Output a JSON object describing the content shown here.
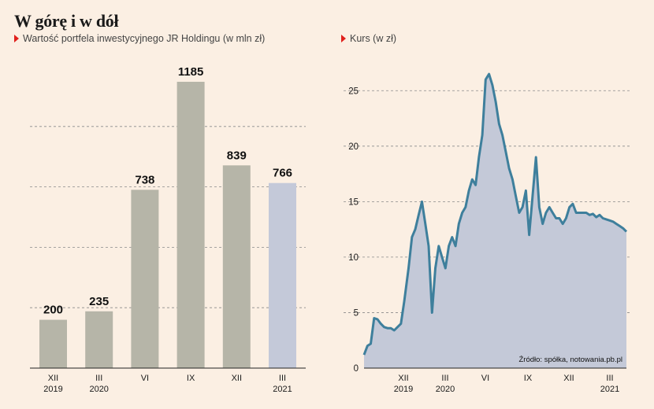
{
  "title": "W górę i w dół",
  "bar_subtitle": "Wartość portfela inwestycyjnego JR Holdingu (w mln zł)",
  "line_subtitle": "Kurs (w zł)",
  "source": "Źródło: spółka, notowania.pb.pl",
  "colors": {
    "bar": "#b6b5a8",
    "bar_highlight": "#c4c9d9",
    "line": "#3e7f9c",
    "area": "#c4c9d8",
    "marker": "#e0201c"
  },
  "chart_data": [
    {
      "type": "bar",
      "categories": [
        [
          "XII",
          "2019"
        ],
        [
          "III",
          "2020"
        ],
        [
          "VI",
          ""
        ],
        [
          "IX",
          ""
        ],
        [
          "XII",
          ""
        ],
        [
          "III",
          "2021"
        ]
      ],
      "values": [
        200,
        235,
        738,
        1185,
        839,
        766
      ],
      "ylim": [
        0,
        1250
      ],
      "grid": true
    },
    {
      "type": "area",
      "yticks": [
        0,
        5,
        10,
        15,
        20,
        25
      ],
      "ylim": [
        0,
        27.5
      ],
      "xticks": [
        [
          "XII",
          "2019"
        ],
        [
          "III",
          "2020"
        ],
        [
          "VI",
          ""
        ],
        [
          "IX",
          ""
        ],
        [
          "XII",
          ""
        ],
        [
          "III",
          "2021"
        ]
      ],
      "grid": true,
      "series": [
        {
          "x": [
            "2019-10-01",
            "2019-10-08",
            "2019-10-15",
            "2019-10-22",
            "2019-10-29",
            "2019-11-05",
            "2019-11-12",
            "2019-11-19",
            "2019-11-26",
            "2019-12-03",
            "2019-12-10",
            "2019-12-17",
            "2019-12-24",
            "2020-01-02",
            "2020-01-09",
            "2020-01-16",
            "2020-01-23",
            "2020-01-30",
            "2020-02-06",
            "2020-02-13",
            "2020-02-20",
            "2020-02-27",
            "2020-03-05",
            "2020-03-12",
            "2020-03-19",
            "2020-03-26",
            "2020-04-02",
            "2020-04-09",
            "2020-04-16",
            "2020-04-23",
            "2020-04-30",
            "2020-05-07",
            "2020-05-14",
            "2020-05-21",
            "2020-05-28",
            "2020-06-04",
            "2020-06-11",
            "2020-06-18",
            "2020-06-25",
            "2020-07-02",
            "2020-07-09",
            "2020-07-16",
            "2020-07-23",
            "2020-07-30",
            "2020-08-06",
            "2020-08-13",
            "2020-08-20",
            "2020-08-27",
            "2020-09-03",
            "2020-09-10",
            "2020-09-17",
            "2020-09-24",
            "2020-10-01",
            "2020-10-08",
            "2020-10-15",
            "2020-10-22",
            "2020-10-29",
            "2020-11-05",
            "2020-11-12",
            "2020-11-19",
            "2020-11-26",
            "2020-12-03",
            "2020-12-10",
            "2020-12-17",
            "2020-12-24",
            "2021-01-07",
            "2021-01-14",
            "2021-01-21",
            "2021-01-28",
            "2021-02-04",
            "2021-02-11",
            "2021-02-18",
            "2021-02-25",
            "2021-03-04",
            "2021-03-11",
            "2021-03-18",
            "2021-03-25",
            "2021-04-01"
          ],
          "values": [
            1.2,
            2.0,
            2.2,
            4.5,
            4.4,
            4.0,
            3.7,
            3.6,
            3.6,
            3.4,
            3.7,
            4.0,
            6.0,
            9.0,
            11.8,
            12.5,
            13.8,
            15.0,
            13.0,
            11.0,
            5.0,
            9.0,
            11.0,
            10.0,
            9.0,
            11.0,
            11.8,
            11.0,
            13.0,
            14.0,
            14.5,
            16.0,
            17.0,
            16.5,
            19.0,
            21.0,
            26.0,
            26.5,
            25.5,
            24.0,
            22.0,
            21.0,
            19.5,
            18.0,
            17.0,
            15.5,
            14.0,
            14.5,
            16.0,
            12.0,
            15.5,
            19.0,
            14.5,
            13.0,
            14.0,
            14.5,
            14.0,
            13.5,
            13.5,
            13.0,
            13.5,
            14.5,
            14.8,
            14.0,
            14.0,
            14.0,
            13.8,
            13.9,
            13.6,
            13.8,
            13.5,
            13.4,
            13.3,
            13.2,
            13.0,
            12.8,
            12.6,
            12.3
          ]
        }
      ]
    }
  ]
}
